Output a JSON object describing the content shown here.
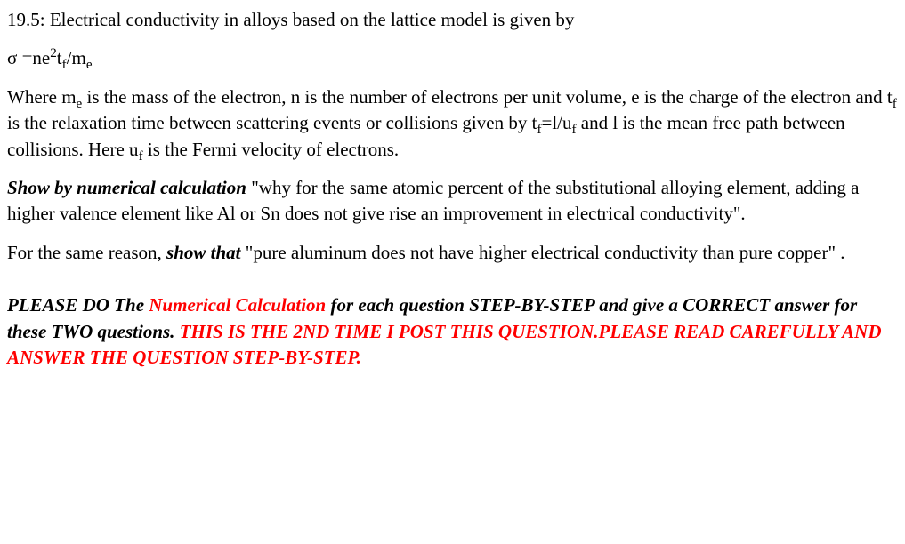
{
  "p1": {
    "text": "19.5: Electrical conductivity in alloys based on the lattice model is given by"
  },
  "p2": {
    "prefix": "σ =ne",
    "sup1": "2",
    "mid1": "t",
    "sub1": "f",
    "mid2": "/m",
    "sub2": "e"
  },
  "p3": {
    "t1": "Where m",
    "sub_e": "e",
    "t2": " is the mass of the electron, n is the number of electrons per unit volume, e is the charge of the electron and t",
    "sub_f": "f",
    "t3": " is the relaxation time between scattering events or collisions given by  t",
    "sub_f2": "f",
    "t4": "=l/u",
    "sub_f3": "f",
    "t5": " and l is the mean free path between collisions.  Here u",
    "sub_f4": "f",
    "t6": " is the Fermi velocity of electrons."
  },
  "p4": {
    "lead": "Show by numerical calculation",
    "rest": " \"why for the same atomic percent of the substitutional alloying element, adding a higher valence element like Al or Sn does not give rise an improvement in electrical conductivity\"."
  },
  "p5": {
    "t1": "For the same reason, ",
    "bold": "show that",
    "t2": " \"pure aluminum does not have higher electrical conductivity than pure copper\" ."
  },
  "p6": {
    "t1": "PLEASE DO The ",
    "red1": "Numerical Calculation",
    "t2": " for each question STEP-BY-STEP and give a CORRECT answer for these TWO questions. ",
    "red2": "THIS IS THE 2ND TIME I POST THIS QUESTION.PLEASE READ CAREFULLY AND ANSWER THE QUESTION STEP-BY-STEP."
  }
}
